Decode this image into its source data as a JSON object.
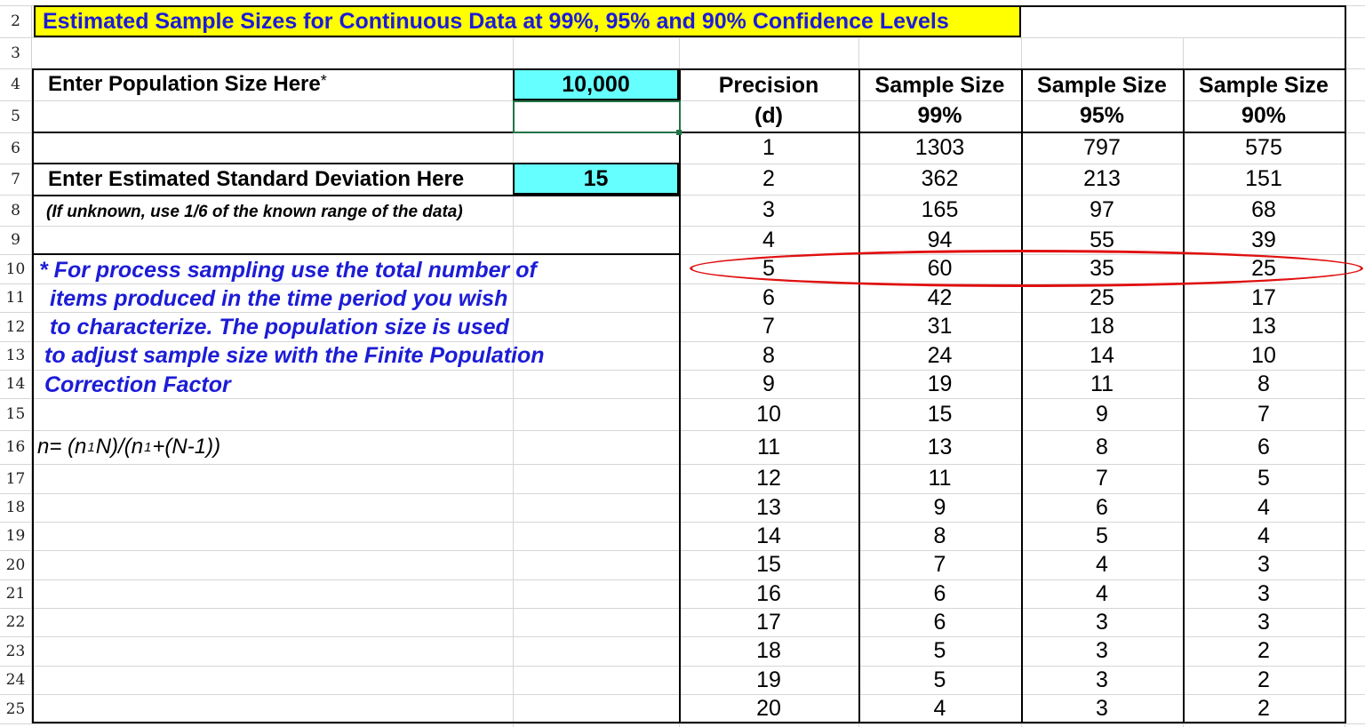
{
  "rows": [
    "2",
    "3",
    "4",
    "5",
    "6",
    "7",
    "8",
    "9",
    "10",
    "11",
    "12",
    "13",
    "14",
    "15",
    "16",
    "17",
    "18",
    "19",
    "20",
    "21",
    "22",
    "23",
    "24",
    "25"
  ],
  "title": "Estimated Sample Sizes for Continuous Data at 99%, 95% and 90% Confidence Levels",
  "population": {
    "label": "Enter Population Size Here",
    "asterisk": "*",
    "value": "10,000"
  },
  "std_dev": {
    "label": "Enter Estimated Standard Deviation Here",
    "note": "(If unknown, use 1/6 of the known range of the data)",
    "value": "15"
  },
  "footnote": [
    "* For process sampling use the total number of",
    "items produced in the time period you wish",
    "to characterize.  The population size is used",
    "to adjust sample size with the Finite Population",
    "Correction Factor"
  ],
  "formula": {
    "part1": "n= (n",
    "sub1": "1",
    "part2": " N)/(n",
    "sub2": "1",
    "part3": " +(N-1))"
  },
  "table": {
    "headers": [
      {
        "line1": "Precision",
        "line2": "(d)"
      },
      {
        "line1": "Sample Size",
        "line2": "99%"
      },
      {
        "line1": "Sample Size",
        "line2": "95%"
      },
      {
        "line1": "Sample Size",
        "line2": "90%"
      }
    ],
    "rows": [
      [
        "1",
        "1303",
        "797",
        "575"
      ],
      [
        "2",
        "362",
        "213",
        "151"
      ],
      [
        "3",
        "165",
        "97",
        "68"
      ],
      [
        "4",
        "94",
        "55",
        "39"
      ],
      [
        "5",
        "60",
        "35",
        "25"
      ],
      [
        "6",
        "42",
        "25",
        "17"
      ],
      [
        "7",
        "31",
        "18",
        "13"
      ],
      [
        "8",
        "24",
        "14",
        "10"
      ],
      [
        "9",
        "19",
        "11",
        "8"
      ],
      [
        "10",
        "15",
        "9",
        "7"
      ],
      [
        "11",
        "13",
        "8",
        "6"
      ],
      [
        "12",
        "11",
        "7",
        "5"
      ],
      [
        "13",
        "9",
        "6",
        "4"
      ],
      [
        "14",
        "8",
        "5",
        "4"
      ],
      [
        "15",
        "7",
        "4",
        "3"
      ],
      [
        "16",
        "6",
        "4",
        "3"
      ],
      [
        "17",
        "6",
        "3",
        "3"
      ],
      [
        "18",
        "5",
        "3",
        "2"
      ],
      [
        "19",
        "5",
        "3",
        "2"
      ],
      [
        "20",
        "4",
        "3",
        "2"
      ]
    ],
    "highlighted_precision": "5",
    "highlight_color": "#e01010"
  },
  "colors": {
    "title_bg": "#ffff00",
    "title_text": "#1c1cd6",
    "input_bg": "#66ffff",
    "selection": "#217346"
  }
}
